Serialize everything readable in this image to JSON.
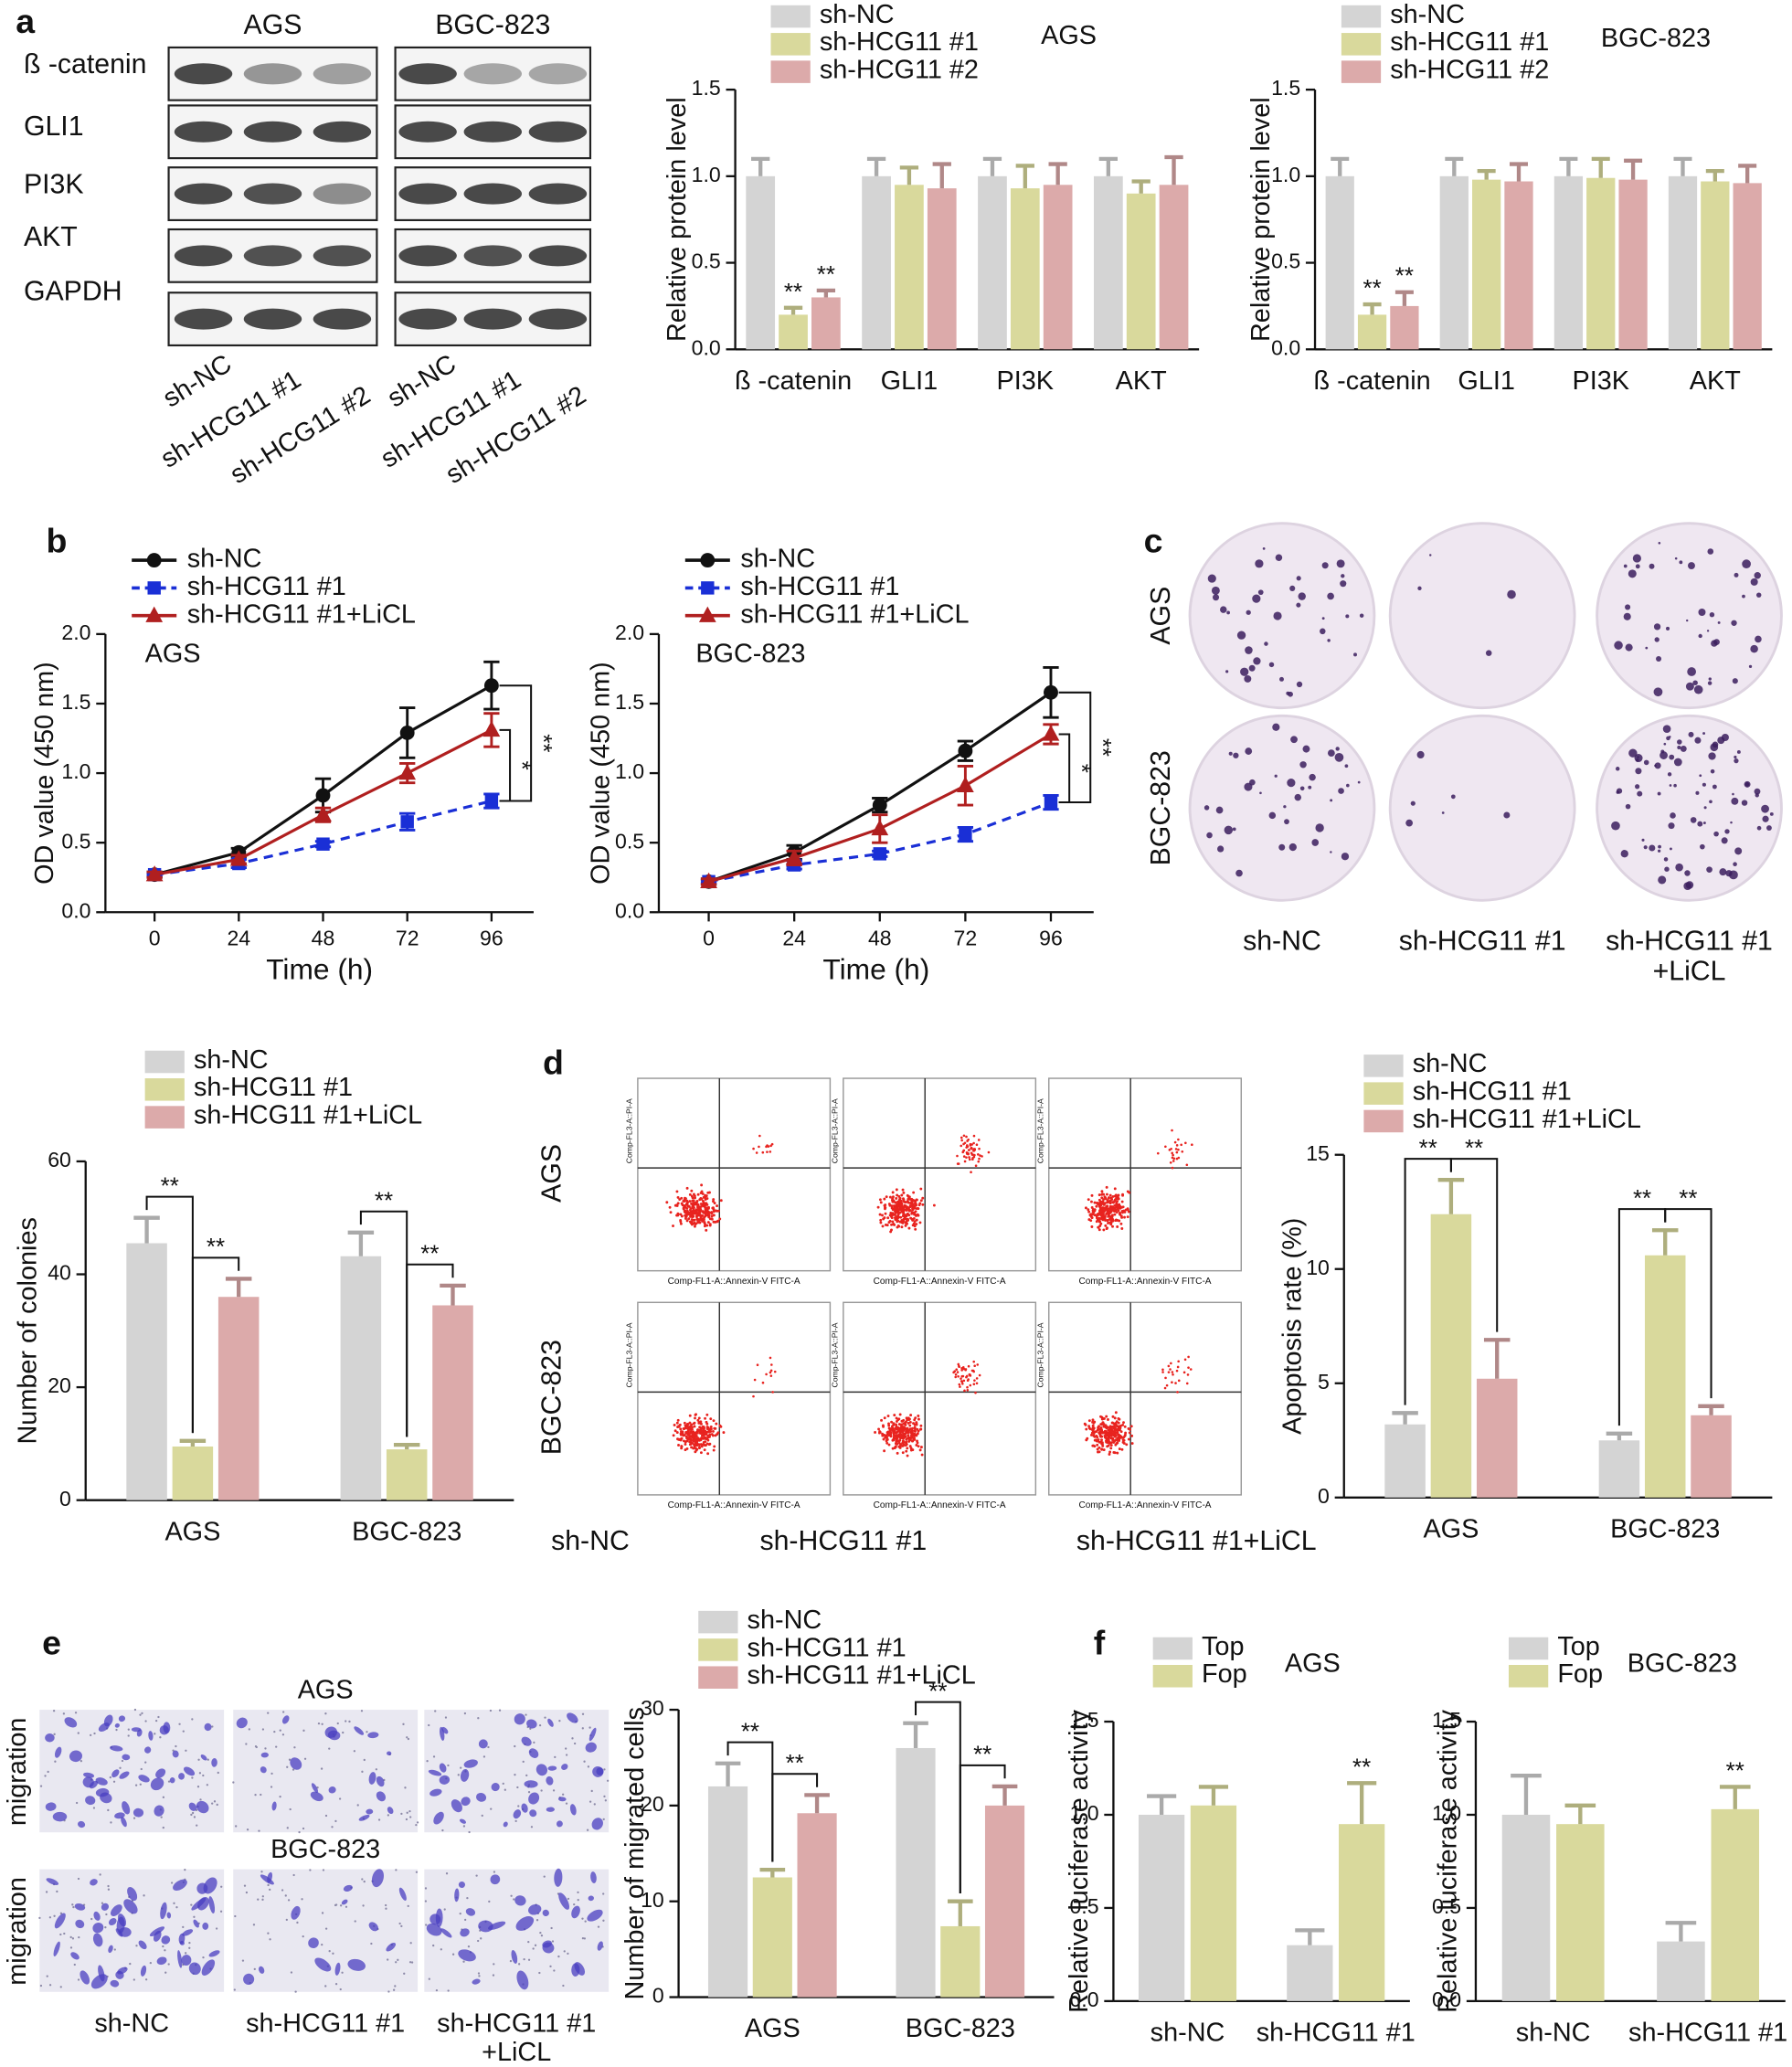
{
  "labels": {
    "panels": [
      "a",
      "b",
      "c",
      "d",
      "e",
      "f"
    ],
    "blot": {
      "cell_lines": [
        "AGS",
        "BGC-823"
      ],
      "proteins": [
        "ß -catenin",
        "GLI1",
        "PI3K",
        "AKT",
        "GAPDH"
      ],
      "lanes": [
        "sh-NC",
        "sh-HCG11 #1",
        "sh-HCG11 #2"
      ]
    },
    "colony": {
      "rows": [
        "AGS",
        "BGC-823"
      ],
      "columns": [
        [
          "sh-NC"
        ],
        [
          "sh-HCG11 #1"
        ],
        [
          "sh-HCG11 #1",
          "+LiCL"
        ]
      ]
    },
    "flow": {
      "rows": [
        "AGS",
        "BGC-823"
      ],
      "columns": [
        "sh-NC",
        "sh-HCG11 #1",
        "sh-HCG11 #1+LiCL"
      ],
      "y_axis": "Comp-FL3-A::PI-A",
      "x_axis": "Comp-FL1-A::Annexin-V FITC-A"
    },
    "migration": {
      "titles": [
        "AGS",
        "BGC-823"
      ],
      "row_label": "migration",
      "columns": [
        [
          "sh-NC"
        ],
        [
          "sh-HCG11 #1"
        ],
        [
          "sh-HCG11 #1",
          "+LiCL"
        ]
      ]
    }
  },
  "chart_data": [
    {
      "type": "bar",
      "annotation": "AGS",
      "ylabel": "Relative protein level",
      "categories": [
        "ß -catenin",
        "GLI1",
        "PI3K",
        "AKT"
      ],
      "ylim": [
        0,
        1.5
      ],
      "yticks": [
        {
          "value": 0,
          "label": "0.0"
        },
        {
          "value": 0.5,
          "label": "0.5"
        },
        {
          "value": 1,
          "label": "1.0"
        },
        {
          "value": 1.5,
          "label": "1.5"
        }
      ],
      "series": [
        {
          "name": "sh-NC",
          "color": "#d4d4d4",
          "values": [
            1,
            1,
            1,
            1
          ],
          "errors": [
            0.1,
            0.1,
            0.1,
            0.1
          ]
        },
        {
          "name": "sh-HCG11 #1",
          "color": "#d9d99c",
          "values": [
            0.2,
            0.95,
            0.93,
            0.9
          ],
          "errors": [
            0.04,
            0.1,
            0.13,
            0.07
          ],
          "marks": [
            "**",
            null,
            null,
            null
          ]
        },
        {
          "name": "sh-HCG11 #2",
          "color": "#dcaaaa",
          "values": [
            0.3,
            0.93,
            0.95,
            0.95
          ],
          "errors": [
            0.04,
            0.14,
            0.12,
            0.16
          ],
          "marks": [
            "**",
            null,
            null,
            null
          ]
        }
      ]
    },
    {
      "type": "bar",
      "annotation": "BGC-823",
      "ylabel": "Relative protein level",
      "categories": [
        "ß -catenin",
        "GLI1",
        "PI3K",
        "AKT"
      ],
      "ylim": [
        0,
        1.5
      ],
      "yticks": [
        {
          "value": 0,
          "label": "0.0"
        },
        {
          "value": 0.5,
          "label": "0.5"
        },
        {
          "value": 1,
          "label": "1.0"
        },
        {
          "value": 1.5,
          "label": "1.5"
        }
      ],
      "series": [
        {
          "name": "sh-NC",
          "color": "#d4d4d4",
          "values": [
            1,
            1,
            1,
            1
          ],
          "errors": [
            0.1,
            0.1,
            0.1,
            0.1
          ]
        },
        {
          "name": "sh-HCG11 #1",
          "color": "#d9d99c",
          "values": [
            0.2,
            0.98,
            0.99,
            0.97
          ],
          "errors": [
            0.06,
            0.05,
            0.11,
            0.06
          ],
          "marks": [
            "**",
            null,
            null,
            null
          ]
        },
        {
          "name": "sh-HCG11 #2",
          "color": "#dcaaaa",
          "values": [
            0.25,
            0.97,
            0.98,
            0.96
          ],
          "errors": [
            0.08,
            0.1,
            0.11,
            0.1
          ],
          "marks": [
            "**",
            null,
            null,
            null
          ]
        }
      ]
    },
    {
      "type": "line",
      "annotation": "AGS",
      "xlabel": "Time (h)",
      "ylabel": "OD value (450 nm)",
      "x": [
        0,
        24,
        48,
        72,
        96
      ],
      "xlim": [
        -14,
        108
      ],
      "xticks": [
        0,
        24,
        48,
        72,
        96
      ],
      "ylim": [
        0,
        2
      ],
      "yticks": [
        {
          "value": 0,
          "label": "0.0"
        },
        {
          "value": 0.5,
          "label": "0.5"
        },
        {
          "value": 1,
          "label": "1.0"
        },
        {
          "value": 1.5,
          "label": "1.5"
        },
        {
          "value": 2,
          "label": "2.0"
        }
      ],
      "series": [
        {
          "name": "sh-NC",
          "color": "#111111",
          "marker": "circle",
          "values": [
            0.27,
            0.43,
            0.84,
            1.29,
            1.63
          ],
          "errors": [
            0.02,
            0.03,
            0.12,
            0.18,
            0.17
          ],
          "end_bracket": "**"
        },
        {
          "name": "sh-HCG11 #1",
          "color": "#1a2fd6",
          "marker": "square",
          "line_style": "dashed",
          "values": [
            0.27,
            0.35,
            0.49,
            0.65,
            0.8
          ],
          "errors": [
            0.01,
            0.03,
            0.02,
            0.06,
            0.05
          ]
        },
        {
          "name": "sh-HCG11 #1+LiCL",
          "color": "#b01f1f",
          "marker": "triangle",
          "values": [
            0.27,
            0.38,
            0.7,
            1.0,
            1.31
          ],
          "errors": [
            0.02,
            0.03,
            0.05,
            0.07,
            0.12
          ],
          "end_bracket": "*"
        }
      ]
    },
    {
      "type": "line",
      "annotation": "BGC-823",
      "xlabel": "Time (h)",
      "ylabel": "OD value (450 nm)",
      "x": [
        0,
        24,
        48,
        72,
        96
      ],
      "xlim": [
        -14,
        108
      ],
      "xticks": [
        0,
        24,
        48,
        72,
        96
      ],
      "ylim": [
        0,
        2
      ],
      "yticks": [
        {
          "value": 0,
          "label": "0.0"
        },
        {
          "value": 0.5,
          "label": "0.5"
        },
        {
          "value": 1,
          "label": "1.0"
        },
        {
          "value": 1.5,
          "label": "1.5"
        },
        {
          "value": 2,
          "label": "2.0"
        }
      ],
      "series": [
        {
          "name": "sh-NC",
          "color": "#111111",
          "marker": "circle",
          "values": [
            0.22,
            0.43,
            0.77,
            1.16,
            1.58
          ],
          "errors": [
            0.02,
            0.05,
            0.05,
            0.07,
            0.18
          ],
          "end_bracket": "**"
        },
        {
          "name": "sh-HCG11 #1",
          "color": "#1a2fd6",
          "marker": "square",
          "line_style": "dashed",
          "values": [
            0.22,
            0.34,
            0.42,
            0.56,
            0.79
          ],
          "errors": [
            0.01,
            0.03,
            0.02,
            0.05,
            0.05
          ]
        },
        {
          "name": "sh-HCG11 #1+LiCL",
          "color": "#b01f1f",
          "marker": "triangle",
          "values": [
            0.22,
            0.39,
            0.6,
            0.91,
            1.28
          ],
          "errors": [
            0.02,
            0.05,
            0.1,
            0.14,
            0.07
          ],
          "end_bracket": "*"
        }
      ]
    },
    {
      "type": "bar",
      "ylabel": "Number of colonies",
      "categories": [
        "AGS",
        "BGC-823"
      ],
      "ylim": [
        0,
        60
      ],
      "yticks": [
        0,
        20,
        40,
        60
      ],
      "series": [
        {
          "name": "sh-NC",
          "color": "#d4d4d4",
          "values": [
            45.5,
            43.2
          ],
          "errors": [
            4.5,
            4.2
          ]
        },
        {
          "name": "sh-HCG11 #1",
          "color": "#d9d99c",
          "values": [
            9.5,
            9
          ],
          "errors": [
            1,
            0.8
          ],
          "vs_previous": [
            "**",
            "**"
          ]
        },
        {
          "name": "sh-HCG11 #1+LiCL",
          "color": "#dcaaaa",
          "values": [
            36,
            34.5
          ],
          "errors": [
            3.2,
            3.5
          ],
          "vs_previous": [
            "**",
            "**"
          ]
        }
      ]
    },
    {
      "type": "bar",
      "ylabel": "Apoptosis rate (%)",
      "categories": [
        "AGS",
        "BGC-823"
      ],
      "ylim": [
        0,
        15
      ],
      "yticks": [
        0,
        5,
        10,
        15
      ],
      "series": [
        {
          "name": "sh-NC",
          "color": "#d4d4d4",
          "values": [
            3.2,
            2.5
          ],
          "errors": [
            0.5,
            0.3
          ]
        },
        {
          "name": "sh-HCG11 #1",
          "color": "#d9d99c",
          "values": [
            12.4,
            10.6
          ],
          "errors": [
            1.5,
            1.1
          ],
          "vs_previous": [
            "**",
            "**"
          ]
        },
        {
          "name": "sh-HCG11 #1+LiCL",
          "color": "#dcaaaa",
          "values": [
            5.2,
            3.6
          ],
          "errors": [
            1.7,
            0.4
          ],
          "vs_previous": [
            "**",
            "**"
          ]
        }
      ]
    },
    {
      "type": "bar",
      "ylabel": "Number of migrated cells",
      "categories": [
        "AGS",
        "BGC-823"
      ],
      "ylim": [
        0,
        30
      ],
      "yticks": [
        0,
        10,
        20,
        30
      ],
      "series": [
        {
          "name": "sh-NC",
          "color": "#d4d4d4",
          "values": [
            22,
            26
          ],
          "errors": [
            2.4,
            2.6
          ]
        },
        {
          "name": "sh-HCG11 #1",
          "color": "#d9d99c",
          "values": [
            12.5,
            7.4
          ],
          "errors": [
            0.8,
            2.6
          ],
          "vs_previous": [
            "**",
            "**"
          ]
        },
        {
          "name": "sh-HCG11 #1+LiCL",
          "color": "#dcaaaa",
          "values": [
            19.2,
            20
          ],
          "errors": [
            1.9,
            2
          ],
          "vs_previous": [
            "**",
            "**"
          ]
        }
      ]
    },
    {
      "type": "bar",
      "annotation": "AGS",
      "ylabel": "Relative luciferase activity",
      "categories": [
        "sh-NC",
        "sh-HCG11 #1"
      ],
      "ylim": [
        0,
        1.5
      ],
      "yticks": [
        {
          "value": 0,
          "label": "0.0"
        },
        {
          "value": 0.5,
          "label": "0.5"
        },
        {
          "value": 1,
          "label": "1.0"
        },
        {
          "value": 1.5,
          "label": "1.5"
        }
      ],
      "series": [
        {
          "name": "Top",
          "color": "#d4d4d4",
          "values": [
            1.0,
            0.3
          ],
          "errors": [
            0.1,
            0.08
          ]
        },
        {
          "name": "Fop",
          "color": "#d9d99c",
          "values": [
            1.05,
            0.95
          ],
          "errors": [
            0.1,
            0.22
          ],
          "marks": [
            null,
            "**"
          ]
        }
      ]
    },
    {
      "type": "bar",
      "annotation": "BGC-823",
      "ylabel": "Relative luciferase activity",
      "categories": [
        "sh-NC",
        "sh-HCG11 #1"
      ],
      "ylim": [
        0,
        1.5
      ],
      "yticks": [
        {
          "value": 0,
          "label": "0.0"
        },
        {
          "value": 0.5,
          "label": "0.5"
        },
        {
          "value": 1,
          "label": "1.0"
        },
        {
          "value": 1.5,
          "label": "1.5"
        }
      ],
      "series": [
        {
          "name": "Top",
          "color": "#d4d4d4",
          "values": [
            1.0,
            0.32
          ],
          "errors": [
            0.21,
            0.1
          ]
        },
        {
          "name": "Fop",
          "color": "#d9d99c",
          "values": [
            0.95,
            1.03
          ],
          "errors": [
            0.1,
            0.12
          ],
          "marks": [
            null,
            "**"
          ]
        }
      ]
    }
  ]
}
